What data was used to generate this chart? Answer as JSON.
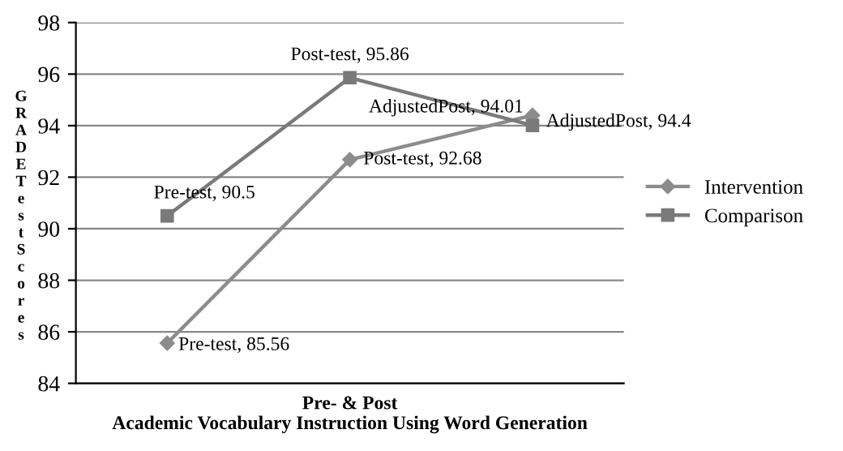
{
  "chart_data": {
    "type": "line",
    "xlabel": "Pre- & Post\nAcademic Vocabulary Instruction Using Word Generation",
    "ylabel": "GRADE Test Scores",
    "categories": [
      null,
      null,
      null
    ],
    "series": [
      {
        "name": "Intervention",
        "color": "#8c8c8c",
        "marker": "diamond",
        "values": [
          85.56,
          92.68,
          94.4
        ],
        "value_labels": [
          "Pre-test, 85.56",
          "Post-test, 92.68",
          "AdjustedPost, 94.4"
        ]
      },
      {
        "name": "Comparison",
        "color": "#7a7a7a",
        "marker": "square",
        "values": [
          90.5,
          95.86,
          94.01
        ],
        "value_labels": [
          "Pre-test, 90.5",
          "Post-test, 95.86",
          "AdjustedPost, 94.01"
        ]
      }
    ],
    "ylim": [
      84,
      98
    ],
    "yticks": [
      84,
      86,
      88,
      90,
      92,
      94,
      96,
      98
    ],
    "grid": "y",
    "legend": "right",
    "line_style": "solid"
  }
}
